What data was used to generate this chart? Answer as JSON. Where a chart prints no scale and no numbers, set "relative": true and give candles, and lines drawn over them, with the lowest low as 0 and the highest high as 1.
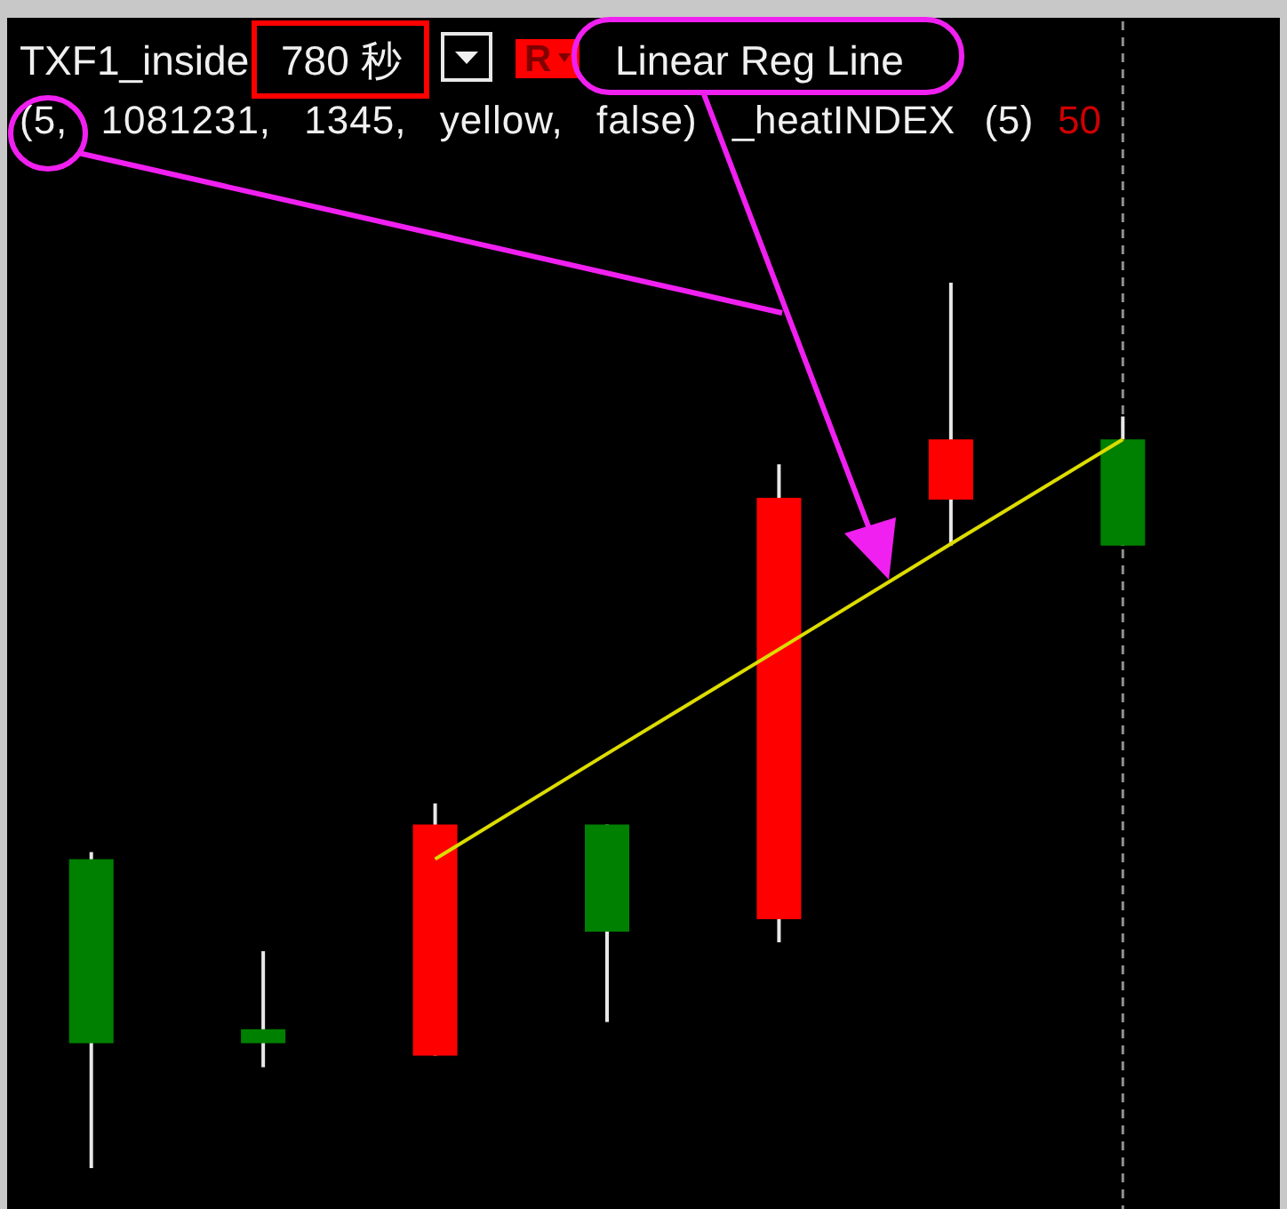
{
  "chart_data": {
    "type": "candlestick",
    "title": "TXF1_inside",
    "annotations": [
      "780 秒",
      "R",
      "Linear Reg Line",
      "(5, 1081231, 1345, yellow, false)",
      "_heatINDEX (5)",
      "50"
    ],
    "categories": [
      null,
      null,
      null,
      null,
      null,
      null,
      null
    ],
    "relative": true,
    "ohlc": [
      [
        0.349,
        0.357,
        0,
        0.141
      ],
      [
        0.157,
        0.245,
        0.114,
        0.141
      ],
      [
        0.127,
        0.412,
        0.127,
        0.388
      ],
      [
        0.388,
        0.388,
        0.165,
        0.267
      ],
      [
        0.281,
        0.795,
        0.255,
        0.757
      ],
      [
        0.755,
        1,
        0.703,
        0.823
      ],
      [
        0.823,
        0.849,
        0.703,
        0.703
      ]
    ],
    "colors": [
      "#008000",
      "#008000",
      "#ff0000",
      "#008000",
      "#ff0000",
      "#ff0000",
      "#008000"
    ],
    "series": [
      {
        "type": "line",
        "color": "#dcdc00",
        "values": [
          null,
          null,
          0.349,
          0.468,
          0.586,
          0.705,
          0.823
        ]
      }
    ]
  }
}
